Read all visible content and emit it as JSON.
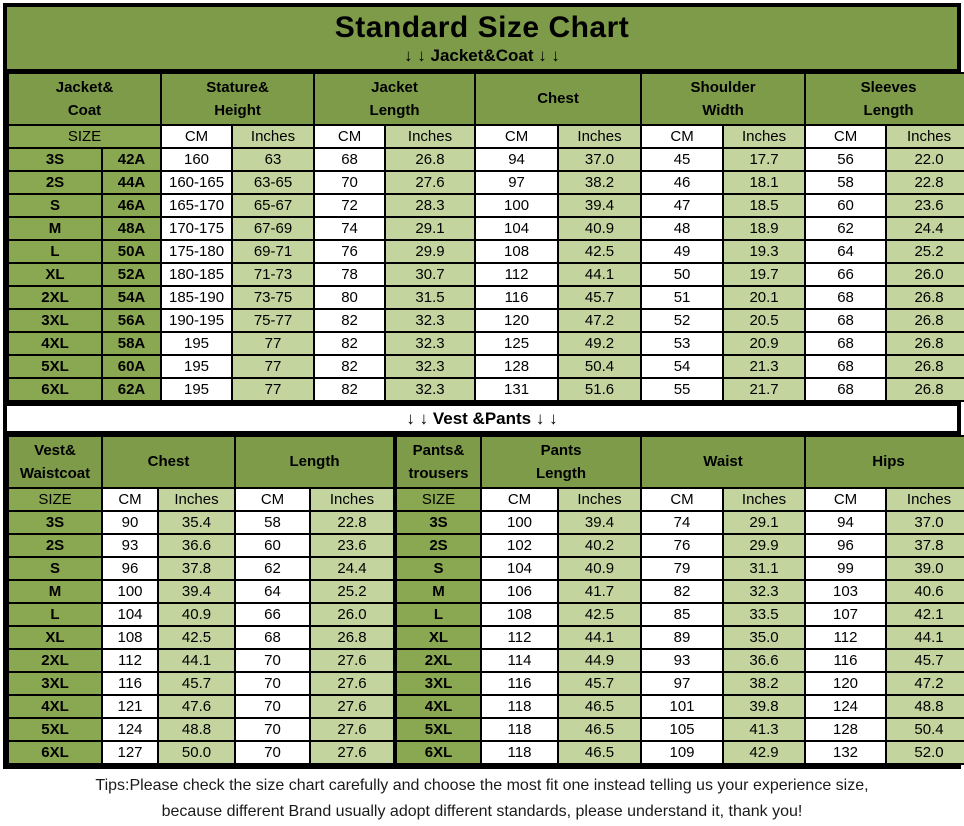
{
  "title": "Standard Size Chart",
  "jacket_section_label": "↓ ↓  Jacket&Coat ↓ ↓",
  "vest_section_label": "↓ ↓  Vest &Pants ↓ ↓",
  "tips": "Tips:Please check the size chart carefully and choose the most fit one instead telling us your experience size,\nbecause different Brand usually adopt different standards, please understand it, thank you!",
  "colors": {
    "header_green": "#7d9b49",
    "size_cell_green": "#8aa751",
    "inches_cell_green": "#c3d49e",
    "cm_cell_white": "#ffffff",
    "border_black": "#000000"
  },
  "icons": {
    "down_arrow": "↓"
  },
  "jacket_table": {
    "groups": [
      "Jacket&\nCoat",
      "Stature&\nHeight",
      "Jacket\nLength",
      "Chest",
      "Shoulder\nWidth",
      "Sleeves\nLength"
    ],
    "size_label": "SIZE",
    "units": [
      "CM",
      "Inches",
      "CM",
      "Inches",
      "CM",
      "Inches",
      "CM",
      "Inches",
      "CM",
      "Inches"
    ],
    "rows": [
      [
        "3S",
        "42A",
        "160",
        "63",
        "68",
        "26.8",
        "94",
        "37.0",
        "45",
        "17.7",
        "56",
        "22.0"
      ],
      [
        "2S",
        "44A",
        "160-165",
        "63-65",
        "70",
        "27.6",
        "97",
        "38.2",
        "46",
        "18.1",
        "58",
        "22.8"
      ],
      [
        "S",
        "46A",
        "165-170",
        "65-67",
        "72",
        "28.3",
        "100",
        "39.4",
        "47",
        "18.5",
        "60",
        "23.6"
      ],
      [
        "M",
        "48A",
        "170-175",
        "67-69",
        "74",
        "29.1",
        "104",
        "40.9",
        "48",
        "18.9",
        "62",
        "24.4"
      ],
      [
        "L",
        "50A",
        "175-180",
        "69-71",
        "76",
        "29.9",
        "108",
        "42.5",
        "49",
        "19.3",
        "64",
        "25.2"
      ],
      [
        "XL",
        "52A",
        "180-185",
        "71-73",
        "78",
        "30.7",
        "112",
        "44.1",
        "50",
        "19.7",
        "66",
        "26.0"
      ],
      [
        "2XL",
        "54A",
        "185-190",
        "73-75",
        "80",
        "31.5",
        "116",
        "45.7",
        "51",
        "20.1",
        "68",
        "26.8"
      ],
      [
        "3XL",
        "56A",
        "190-195",
        "75-77",
        "82",
        "32.3",
        "120",
        "47.2",
        "52",
        "20.5",
        "68",
        "26.8"
      ],
      [
        "4XL",
        "58A",
        "195",
        "77",
        "82",
        "32.3",
        "125",
        "49.2",
        "53",
        "20.9",
        "68",
        "26.8"
      ],
      [
        "5XL",
        "60A",
        "195",
        "77",
        "82",
        "32.3",
        "128",
        "50.4",
        "54",
        "21.3",
        "68",
        "26.8"
      ],
      [
        "6XL",
        "62A",
        "195",
        "77",
        "82",
        "32.3",
        "131",
        "51.6",
        "55",
        "21.7",
        "68",
        "26.8"
      ]
    ]
  },
  "vest_pants_table": {
    "groups": [
      "Vest&\nWaistcoat",
      "Chest",
      "Length",
      "Pants&\ntrousers",
      "Pants\nLength",
      "Waist",
      "Hips"
    ],
    "size_label": "SIZE",
    "pants_size_label": "SIZE",
    "units": [
      "CM",
      "Inches",
      "CM",
      "Inches",
      "CM",
      "Inches",
      "CM",
      "Inches",
      "CM",
      "Inches"
    ],
    "rows": [
      [
        "3S",
        "90",
        "35.4",
        "58",
        "22.8",
        "3S",
        "100",
        "39.4",
        "74",
        "29.1",
        "94",
        "37.0"
      ],
      [
        "2S",
        "93",
        "36.6",
        "60",
        "23.6",
        "2S",
        "102",
        "40.2",
        "76",
        "29.9",
        "96",
        "37.8"
      ],
      [
        "S",
        "96",
        "37.8",
        "62",
        "24.4",
        "S",
        "104",
        "40.9",
        "79",
        "31.1",
        "99",
        "39.0"
      ],
      [
        "M",
        "100",
        "39.4",
        "64",
        "25.2",
        "M",
        "106",
        "41.7",
        "82",
        "32.3",
        "103",
        "40.6"
      ],
      [
        "L",
        "104",
        "40.9",
        "66",
        "26.0",
        "L",
        "108",
        "42.5",
        "85",
        "33.5",
        "107",
        "42.1"
      ],
      [
        "XL",
        "108",
        "42.5",
        "68",
        "26.8",
        "XL",
        "112",
        "44.1",
        "89",
        "35.0",
        "112",
        "44.1"
      ],
      [
        "2XL",
        "112",
        "44.1",
        "70",
        "27.6",
        "2XL",
        "114",
        "44.9",
        "93",
        "36.6",
        "116",
        "45.7"
      ],
      [
        "3XL",
        "116",
        "45.7",
        "70",
        "27.6",
        "3XL",
        "116",
        "45.7",
        "97",
        "38.2",
        "120",
        "47.2"
      ],
      [
        "4XL",
        "121",
        "47.6",
        "70",
        "27.6",
        "4XL",
        "118",
        "46.5",
        "101",
        "39.8",
        "124",
        "48.8"
      ],
      [
        "5XL",
        "124",
        "48.8",
        "70",
        "27.6",
        "5XL",
        "118",
        "46.5",
        "105",
        "41.3",
        "128",
        "50.4"
      ],
      [
        "6XL",
        "127",
        "50.0",
        "70",
        "27.6",
        "6XL",
        "118",
        "46.5",
        "109",
        "42.9",
        "132",
        "52.0"
      ]
    ]
  }
}
